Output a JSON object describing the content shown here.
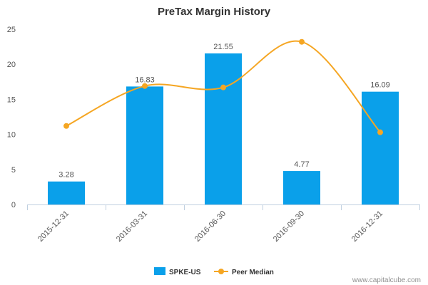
{
  "chart_data": {
    "type": "bar",
    "title": "PreTax Margin History",
    "categories": [
      "2015-12-31",
      "2016-03-31",
      "2016-06-30",
      "2016-09-30",
      "2016-12-31"
    ],
    "series": [
      {
        "name": "SPKE-US",
        "kind": "bar",
        "color": "#0aa0ea",
        "values": [
          3.28,
          16.83,
          21.55,
          4.77,
          16.09
        ],
        "labels": [
          "3.28",
          "16.83",
          "21.55",
          "4.77",
          "16.09"
        ]
      },
      {
        "name": "Peer Median",
        "kind": "line",
        "color": "#f5a623",
        "values": [
          11.2,
          16.9,
          16.7,
          23.2,
          10.3
        ]
      }
    ],
    "y_ticks": [
      "0",
      "5",
      "10",
      "15",
      "20",
      "25"
    ],
    "ylim": [
      0,
      25
    ],
    "grid": false,
    "legend": "bottom-center"
  },
  "credit": "www.capitalcube.com"
}
